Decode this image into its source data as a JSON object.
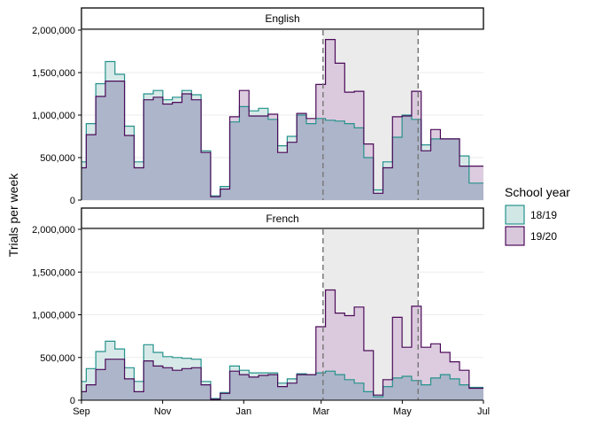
{
  "chart_data": {
    "type": "area",
    "step": true,
    "facets": [
      "English",
      "French"
    ],
    "ylabel": "Trials per week",
    "xlabel": "",
    "ylim": [
      0,
      2000000
    ],
    "y_ticks": [
      0,
      500000,
      1000000,
      1500000,
      2000000
    ],
    "y_tick_labels": [
      "0",
      "500,000",
      "1,000,000",
      "1,500,000",
      "2,000,000"
    ],
    "x_ticks": [
      "Sep",
      "Nov",
      "Jan",
      "Mar",
      "May",
      "Jul"
    ],
    "x_tick_weeks": [
      0,
      8.7,
      17.4,
      25.7,
      34.4,
      43.1
    ],
    "x_range_weeks": [
      0,
      43.1
    ],
    "shaded_region_weeks": [
      25.9,
      36.1
    ],
    "legend": {
      "title": "School year",
      "position": "right",
      "entries": [
        "18/19",
        "19/20"
      ]
    },
    "colors": {
      "18/19_line": "#24928b",
      "18/19_fill": "#d1e7e6",
      "19/20_line": "#4b0a59",
      "19/20_fill": "#d9c7dc",
      "overlap_fill": "#adb5ca",
      "shade": "#ebebeb",
      "vline": "#7a7a7a",
      "grid": "#ebebeb"
    },
    "series": [
      {
        "facet": "English",
        "name": "18/19",
        "values": [
          450000,
          900000,
          1370000,
          1630000,
          1480000,
          870000,
          450000,
          1250000,
          1290000,
          1180000,
          1210000,
          1290000,
          1240000,
          580000,
          50000,
          160000,
          920000,
          1100000,
          1050000,
          1080000,
          950000,
          640000,
          750000,
          1000000,
          900000,
          960000,
          940000,
          930000,
          900000,
          850000,
          500000,
          120000,
          450000,
          740000,
          1000000,
          950000,
          650000,
          720000,
          720000,
          720000,
          520000,
          200000,
          200000
        ]
      },
      {
        "facet": "English",
        "name": "19/20",
        "values": [
          380000,
          770000,
          1220000,
          1400000,
          1400000,
          760000,
          380000,
          1180000,
          1210000,
          1130000,
          1150000,
          1250000,
          1180000,
          560000,
          40000,
          130000,
          980000,
          1290000,
          990000,
          990000,
          1010000,
          560000,
          680000,
          1020000,
          960000,
          1360000,
          1890000,
          1610000,
          1270000,
          1280000,
          660000,
          80000,
          380000,
          980000,
          990000,
          1280000,
          580000,
          830000,
          720000,
          720000,
          400000,
          400000,
          400000
        ]
      },
      {
        "facet": "French",
        "name": "18/19",
        "values": [
          220000,
          370000,
          570000,
          690000,
          600000,
          380000,
          220000,
          650000,
          560000,
          510000,
          500000,
          490000,
          480000,
          220000,
          20000,
          90000,
          400000,
          350000,
          320000,
          320000,
          320000,
          200000,
          250000,
          310000,
          300000,
          320000,
          340000,
          300000,
          240000,
          200000,
          100000,
          40000,
          160000,
          260000,
          280000,
          230000,
          180000,
          260000,
          300000,
          250000,
          180000,
          150000,
          150000
        ]
      },
      {
        "facet": "French",
        "name": "19/20",
        "values": [
          100000,
          180000,
          360000,
          480000,
          480000,
          250000,
          100000,
          460000,
          400000,
          380000,
          350000,
          370000,
          380000,
          180000,
          10000,
          80000,
          340000,
          300000,
          270000,
          290000,
          300000,
          160000,
          200000,
          300000,
          300000,
          860000,
          1290000,
          1020000,
          990000,
          1090000,
          580000,
          60000,
          240000,
          970000,
          620000,
          1100000,
          620000,
          660000,
          560000,
          450000,
          350000,
          140000,
          140000
        ]
      }
    ]
  }
}
